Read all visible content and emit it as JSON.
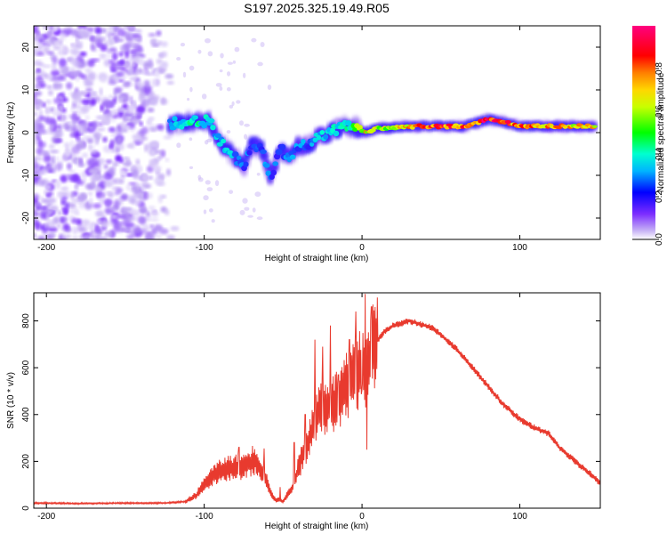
{
  "title": "S197.2025.325.19.49.R05",
  "colors": {
    "snr_line": "#e83a2e",
    "spectrogram_ridge": "#1f3cff",
    "noise": "#8a3cf0",
    "axes": "#000000"
  },
  "chart_data": [
    {
      "type": "heatmap",
      "title": "S197.2025.325.19.49.R05",
      "xlabel": "Height of straight line (km)",
      "ylabel": "Frequency (Hz)",
      "xlim": [
        -208,
        151
      ],
      "ylim": [
        -25,
        25
      ],
      "xticks": [
        -200,
        -100,
        0,
        100
      ],
      "yticks": [
        -20,
        -10,
        0,
        10,
        20
      ],
      "colorbar": {
        "label": "Normalized spectral amplitude",
        "range": [
          0,
          1
        ],
        "ticks": [
          "0.0",
          "0.2",
          "0.4",
          "0.6",
          "0.8"
        ],
        "tick_values": [
          0,
          0.2,
          0.4,
          0.6,
          0.8
        ],
        "colormap": "hsv-like: violet-blue-cyan-green-yellow-orange-red-magenta"
      },
      "ridge": {
        "description": "dominant spectral ridge (x km, frequency Hz, normalized amplitude)",
        "points": [
          [
            -122,
            2.0,
            0.3
          ],
          [
            -112,
            2.5,
            0.4
          ],
          [
            -102,
            2.5,
            0.42
          ],
          [
            -97,
            3.0,
            0.35
          ],
          [
            -92,
            -1.5,
            0.35
          ],
          [
            -86,
            -3.5,
            0.38
          ],
          [
            -80,
            -6.0,
            0.32
          ],
          [
            -75,
            -8.0,
            0.3
          ],
          [
            -70,
            -3.0,
            0.28
          ],
          [
            -64,
            -3.5,
            0.3
          ],
          [
            -58,
            -10.5,
            0.28
          ],
          [
            -52,
            -4.0,
            0.3
          ],
          [
            -46,
            -5.5,
            0.28
          ],
          [
            -40,
            -3.0,
            0.32
          ],
          [
            -34,
            -3.0,
            0.3
          ],
          [
            -28,
            -1.0,
            0.35
          ],
          [
            -20,
            0.0,
            0.4
          ],
          [
            -14,
            1.0,
            0.42
          ],
          [
            -6,
            1.5,
            0.45
          ],
          [
            2,
            0.0,
            0.7
          ],
          [
            10,
            1.0,
            0.6
          ],
          [
            20,
            1.2,
            0.65
          ],
          [
            35,
            1.5,
            0.8
          ],
          [
            50,
            1.5,
            0.85
          ],
          [
            65,
            1.5,
            0.82
          ],
          [
            80,
            3.0,
            0.9
          ],
          [
            90,
            2.5,
            0.85
          ],
          [
            100,
            1.5,
            0.8
          ],
          [
            115,
            1.5,
            0.75
          ],
          [
            130,
            1.5,
            0.72
          ],
          [
            148,
            1.5,
            0.7
          ]
        ]
      },
      "noise_region": {
        "x_range": [
          -208,
          -118
        ],
        "freq_range": [
          -25,
          25
        ],
        "amplitude": [
          0.0,
          0.15
        ]
      }
    },
    {
      "type": "line",
      "xlabel": "Height of straight line (km)",
      "ylabel": "SNR (10 * v/v)",
      "xlim": [
        -208,
        151
      ],
      "ylim": [
        0,
        920
      ],
      "xticks": [
        -200,
        -100,
        0,
        100
      ],
      "yticks": [
        0,
        200,
        400,
        600,
        800
      ],
      "series": [
        {
          "name": "SNR",
          "envelope": {
            "x": [
              -208,
              -180,
              -150,
              -125,
              -112,
              -105,
              -98,
              -92,
              -86,
              -80,
              -74,
              -68,
              -62,
              -56,
              -50,
              -44,
              -38,
              -32,
              -26,
              -20,
              -14,
              -8,
              -4,
              0,
              3,
              6,
              10,
              15,
              20,
              25,
              30,
              35,
              40,
              45,
              50,
              55,
              60,
              65,
              70,
              75,
              80,
              90,
              100,
              110,
              118,
              125,
              135,
              145,
              151
            ],
            "y": [
              22,
              20,
              22,
              22,
              28,
              55,
              120,
              150,
              170,
              175,
              180,
              210,
              140,
              40,
              30,
              90,
              220,
              320,
              440,
              430,
              470,
              530,
              560,
              600,
              610,
              660,
              720,
              760,
              780,
              790,
              800,
              790,
              780,
              770,
              740,
              710,
              680,
              640,
              600,
              560,
              520,
              440,
              380,
              340,
              320,
              260,
              200,
              145,
              105
            ]
          },
          "spikes": [
            [
              -78,
              260
            ],
            [
              -62,
              255
            ],
            [
              -52,
              90
            ],
            [
              -43,
              280
            ],
            [
              -36,
              400
            ],
            [
              -30,
              720
            ],
            [
              -25,
              690
            ],
            [
              -20,
              780
            ],
            [
              -15,
              570
            ],
            [
              -8,
              720
            ],
            [
              -4,
              840
            ],
            [
              0,
              500
            ],
            [
              2,
              915
            ],
            [
              6,
              860
            ],
            [
              3,
              250
            ]
          ]
        }
      ]
    }
  ]
}
